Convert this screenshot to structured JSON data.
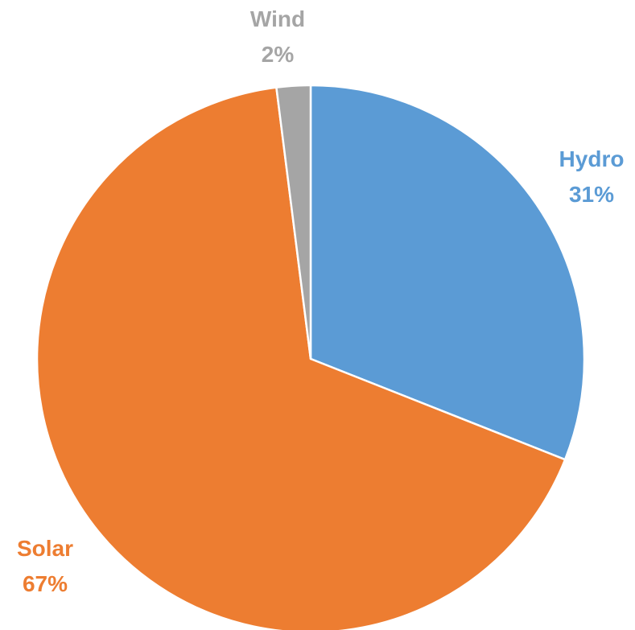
{
  "chart_data": {
    "type": "pie",
    "title": "",
    "series": [
      {
        "name": "",
        "slices": [
          {
            "label": "Hydro",
            "value": 31,
            "percent_text": "31%",
            "color": "#5B9BD5"
          },
          {
            "label": "Solar",
            "value": 67,
            "percent_text": "67%",
            "color": "#ED7D31"
          },
          {
            "label": "Wind",
            "value": 2,
            "percent_text": "2%",
            "color": "#A5A5A5"
          }
        ]
      }
    ],
    "start_angle_deg": 0,
    "direction": "clockwise",
    "legend": "none",
    "data_labels": "outside, category name and percentage, colored by slice"
  }
}
